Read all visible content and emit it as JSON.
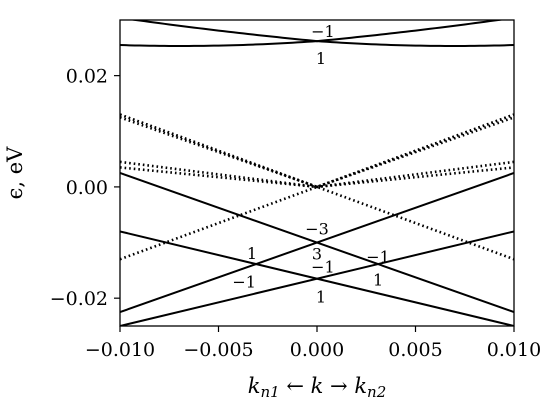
{
  "chart_data": {
    "type": "line",
    "title": "",
    "xlabel": "k_n1 ← k → k_n2",
    "ylabel": "ϵ, eV",
    "xlim": [
      -0.01,
      0.01
    ],
    "ylim": [
      -0.025,
      0.03
    ],
    "xticks": [
      -0.01,
      -0.005,
      0.0,
      0.005,
      0.01
    ],
    "xtick_labels": [
      "−0.010",
      "−0.005",
      "0.000",
      "0.005",
      "0.010"
    ],
    "yticks": [
      -0.02,
      0.0,
      0.02
    ],
    "ytick_labels": [
      "−0.02",
      "0.00",
      "0.02"
    ],
    "grid": false,
    "legend": "none",
    "series": [
      {
        "style": "solid",
        "x": [
          -0.01,
          -0.005,
          0.0,
          0.005,
          0.01
        ],
        "y": [
          0.0304,
          0.0281,
          0.0262,
          0.0281,
          0.0304
        ]
      },
      {
        "style": "solid",
        "x": [
          -0.01,
          -0.005,
          0.0,
          0.005,
          0.01
        ],
        "y": [
          0.0255,
          0.0254,
          0.0262,
          0.0254,
          0.0255
        ]
      },
      {
        "style": "solid",
        "x": [
          -0.01,
          0.01
        ],
        "y": [
          0.0025,
          -0.0225
        ]
      },
      {
        "style": "solid",
        "x": [
          -0.01,
          0.01
        ],
        "y": [
          -0.0225,
          0.0025
        ]
      },
      {
        "style": "solid",
        "x": [
          -0.01,
          0.01
        ],
        "y": [
          -0.008,
          -0.025
        ]
      },
      {
        "style": "solid",
        "x": [
          -0.01,
          0.01
        ],
        "y": [
          -0.025,
          -0.008
        ]
      },
      {
        "style": "dotted",
        "x": [
          -0.01,
          0.0,
          0.01
        ],
        "y": [
          0.013,
          0.0,
          0.013
        ]
      },
      {
        "style": "dotted",
        "x": [
          -0.01,
          0.0,
          0.01
        ],
        "y": [
          0.0125,
          0.0,
          0.0125
        ]
      },
      {
        "style": "dotted",
        "x": [
          -0.01,
          0.0,
          0.01
        ],
        "y": [
          0.0045,
          0.0,
          0.0045
        ]
      },
      {
        "style": "dotted",
        "x": [
          -0.01,
          0.0,
          0.01
        ],
        "y": [
          0.0035,
          0.0,
          0.0035
        ]
      },
      {
        "style": "dotted",
        "x": [
          -0.01,
          0.01
        ],
        "y": [
          -0.013,
          0.013
        ]
      },
      {
        "style": "dotted",
        "x": [
          -0.01,
          0.01
        ],
        "y": [
          0.013,
          -0.013
        ]
      }
    ],
    "annotations": [
      {
        "text": "−1",
        "x": 0.0003,
        "y": 0.028
      },
      {
        "text": "1",
        "x": 0.0002,
        "y": 0.0232
      },
      {
        "text": "−3",
        "x": 0.0,
        "y": -0.0075
      },
      {
        "text": "3",
        "x": 0.0,
        "y": -0.012
      },
      {
        "text": "−1",
        "x": 0.0003,
        "y": -0.0143
      },
      {
        "text": "1",
        "x": -0.0033,
        "y": -0.0119
      },
      {
        "text": "−1",
        "x": -0.0037,
        "y": -0.017
      },
      {
        "text": "−1",
        "x": 0.0031,
        "y": -0.0125
      },
      {
        "text": "1",
        "x": 0.0031,
        "y": -0.0166
      },
      {
        "text": "1",
        "x": 0.0002,
        "y": -0.0197
      }
    ]
  }
}
